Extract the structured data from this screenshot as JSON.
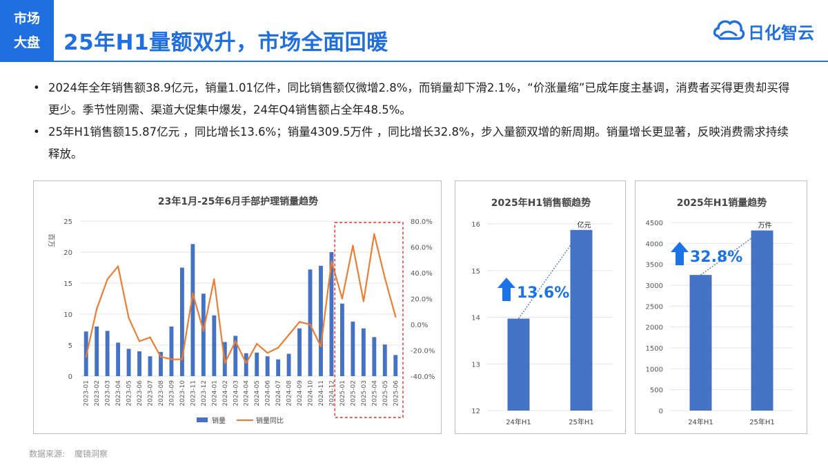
{
  "header": {
    "section_tag_line1": "市场",
    "section_tag_line2": "大盘",
    "title": "25年H1量额双升，市场全面回暖",
    "brand_name": "日化智云"
  },
  "bullets": [
    "2024年全年销售额38.9亿元，销量1.01亿件，同比销售额仅微增2.8%，而销量却下滑2.1%，“价涨量缩”已成年度主基调，消费者买得更贵却买得更少。季节性刚需、渠道大促集中爆发，24年Q4销售额占全年48.5%。",
    "25年H1销售额15.87亿元 ，同比增长13.6%；销量4309.5万件 ，同比增长32.8%，步入量额双增的新周期。销量增长更显著，反映消费需求持续释放。"
  ],
  "source": {
    "label": "数据来源:",
    "value": "魔镜洞察"
  },
  "colors": {
    "accent": "#1f6fe0",
    "bar": "#4472c4",
    "line": "#ed7d31",
    "highlight": "#e03030"
  },
  "chart_data": [
    {
      "type": "bar",
      "title": "23年1月-25年6月手部护理销量趋势",
      "ylabel": "百万",
      "ylim": [
        0,
        25
      ],
      "y_ticks": [
        0,
        5,
        10,
        15,
        20,
        25
      ],
      "y2lim": [
        -40,
        80
      ],
      "y2_ticks": [
        "-40.0%",
        "-20.0%",
        "0.0%",
        "20.0%",
        "40.0%",
        "60.0%",
        "80.0%"
      ],
      "categories": [
        "2023-01",
        "2023-02",
        "2023-03",
        "2023-04",
        "2023-05",
        "2023-06",
        "2023-07",
        "2023-08",
        "2023-09",
        "2023-10",
        "2023-11",
        "2023-12",
        "2024-01",
        "2024-02",
        "2024-03",
        "2024-04",
        "2024-05",
        "2024-06",
        "2024-07",
        "2024-08",
        "2024-09",
        "2024-10",
        "2024-11",
        "2024-12",
        "2025-01",
        "2025-02",
        "2025-03",
        "2025-04",
        "2025-05",
        "2025-06"
      ],
      "series": [
        {
          "name": "销量",
          "type": "bar",
          "values": [
            7.2,
            8.0,
            7.3,
            5.4,
            4.4,
            4.0,
            3.2,
            3.9,
            8.0,
            17.5,
            21.3,
            13.3,
            9.8,
            5.5,
            6.5,
            3.7,
            3.8,
            3.2,
            2.7,
            3.6,
            7.7,
            17.2,
            17.8,
            20.0,
            11.7,
            8.8,
            7.7,
            6.3,
            5.1,
            3.4
          ]
        },
        {
          "name": "销量同比",
          "type": "line",
          "axis": "secondary",
          "values": [
            -25,
            12,
            35,
            45,
            5,
            -13,
            -10,
            -25,
            -27,
            -27,
            24,
            -5,
            35,
            -30,
            -13,
            -30,
            -15,
            -22,
            -18,
            -8,
            2,
            0,
            -17,
            49,
            20,
            61,
            18,
            70,
            36,
            6
          ]
        }
      ],
      "highlight_range": [
        "2025-01",
        "2025-06"
      ],
      "legend": "bottom"
    },
    {
      "type": "bar",
      "title": "2025年H1销售额趋势",
      "categories": [
        "24年H1",
        "25年H1"
      ],
      "values": [
        13.97,
        15.87
      ],
      "ylim": [
        12,
        16
      ],
      "y_ticks": [
        12,
        13,
        14,
        15,
        16
      ],
      "unit": "亿元",
      "annotation": "13.6%"
    },
    {
      "type": "bar",
      "title": "2025年H1销量趋势",
      "categories": [
        "24年H1",
        "25年H1"
      ],
      "values": [
        3245,
        4309.5
      ],
      "ylim": [
        0,
        4500
      ],
      "y_ticks": [
        0,
        500,
        1000,
        1500,
        2000,
        2500,
        3000,
        3500,
        4000,
        4500
      ],
      "unit": "万件",
      "annotation": "32.8%"
    }
  ]
}
